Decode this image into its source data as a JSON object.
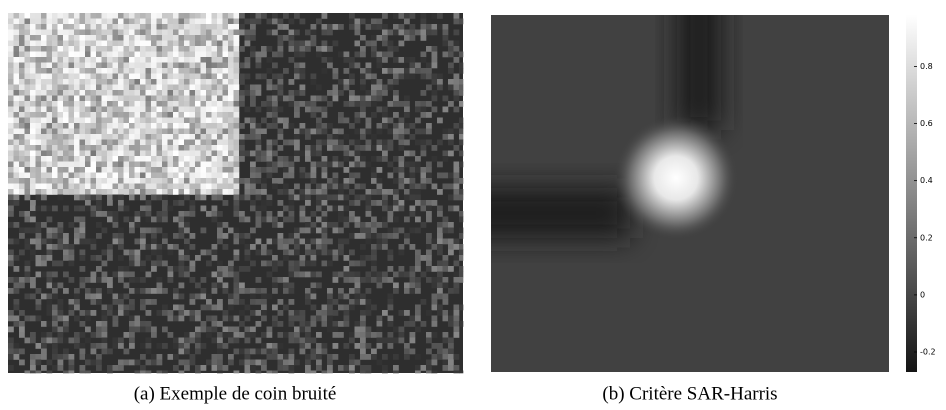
{
  "figures": [
    {
      "caption": "(a) Exemple de coin bruité"
    },
    {
      "caption": "(b) Critère SAR-Harris",
      "colorbar": {
        "lim": [
          -0.27,
          0.98
        ],
        "ticks": [
          0.8,
          0.6,
          0.4,
          0.2,
          0,
          -0.2
        ]
      }
    }
  ]
}
